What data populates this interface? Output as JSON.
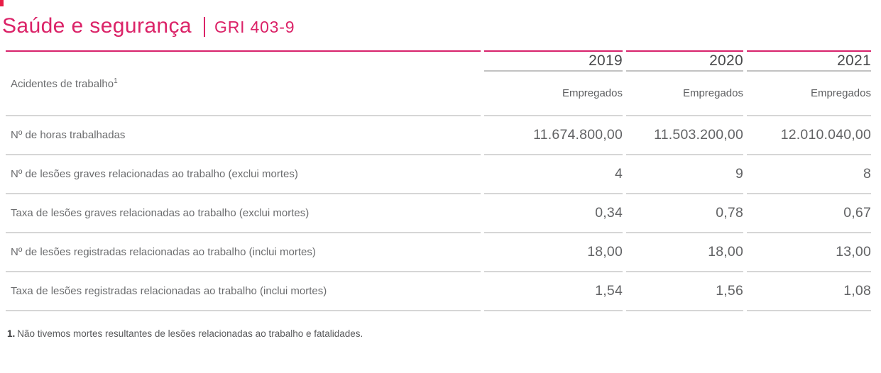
{
  "header": {
    "title": "Saúde e segurança",
    "gri_tag": "GRI 403-9"
  },
  "table": {
    "corner_label": "Acidentes de trabalho",
    "corner_label_footnote_ref": "1",
    "years": [
      "2019",
      "2020",
      "2021"
    ],
    "subheaders": [
      "Empregados",
      "Empregados",
      "Empregados"
    ],
    "rows": [
      {
        "label": "Nº de horas trabalhadas",
        "values": [
          "11.674.800,00",
          "11.503.200,00",
          "12.010.040,00"
        ]
      },
      {
        "label": "Nº de lesões graves relacionadas ao trabalho (exclui mortes)",
        "values": [
          "4",
          "9",
          "8"
        ]
      },
      {
        "label": "Taxa de lesões graves relacionadas ao trabalho (exclui mortes)",
        "values": [
          "0,34",
          "0,78",
          "0,67"
        ]
      },
      {
        "label": "Nº de lesões registradas relacionadas ao trabalho (inclui mortes)",
        "values": [
          "18,00",
          "18,00",
          "13,00"
        ]
      },
      {
        "label": "Taxa de lesões registradas relacionadas ao trabalho (inclui mortes)",
        "values": [
          "1,54",
          "1,56",
          "1,08"
        ]
      }
    ]
  },
  "footnote": {
    "marker": "1.",
    "text": "Não tivemos mortes resultantes de lesões relacionadas ao trabalho e fatalidades."
  },
  "colors": {
    "accent_pink": "#db2368",
    "corner_red": "#e81d46",
    "rule_gray": "#d6d6d6",
    "text_gray": "#6b6c6e",
    "year_text": "#48494b"
  }
}
